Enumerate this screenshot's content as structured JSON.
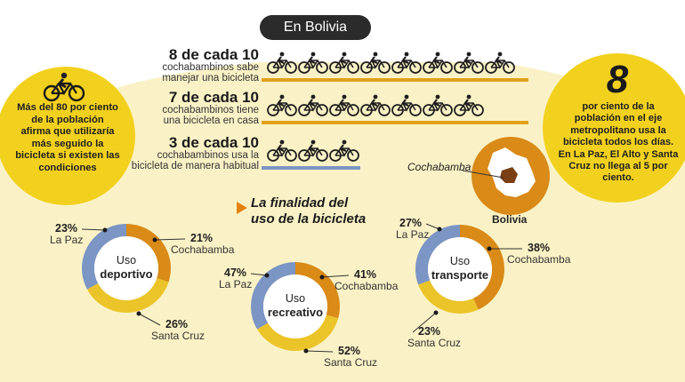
{
  "header": {
    "badge": "En Bolivia"
  },
  "stats": [
    {
      "big": "8 de cada 10",
      "line1": "cochabambinos sabe",
      "line2": "manejar una bicicleta",
      "count": 8
    },
    {
      "big": "7 de cada 10",
      "line1": "cochabambinos tiene",
      "line2": "una bicicleta en casa",
      "count": 7
    },
    {
      "big": "3 de cada 10",
      "line1": "cochabambinos usa la",
      "line2": "bicicleta de manera habitual",
      "count": 3
    }
  ],
  "left_circle": {
    "text_lines": [
      "Más del 80 por ciento",
      "de la población",
      "afirma que utilizaría",
      "más seguido la",
      "bicicleta si existen las",
      "condiciones"
    ],
    "icon": "bicycle-rider-icon"
  },
  "right_circle": {
    "number": "8",
    "text_lines": [
      "por ciento de la",
      "población en el eje",
      "metropolitano usa la",
      "bicicleta todos los días.",
      "En La Paz, El Alto y Santa",
      "Cruz no llega al 5 por",
      "ciento."
    ]
  },
  "map": {
    "region_label": "Cochabamba",
    "country_label": "Bolivia",
    "icon": "bolivia-map-icon"
  },
  "section_title": {
    "line1": "La finalidad del",
    "line2": "uso de la bicicleta"
  },
  "colors": {
    "la_paz": "#7b95c4",
    "cochabamba": "#d98a17",
    "santa_cruz": "#ebc42a",
    "bar_orange": "#e0a11b",
    "bar_blue": "#7b95c4",
    "wash": "#faf2c6",
    "circle": "#f2d11e"
  },
  "chart_data": [
    {
      "type": "pie",
      "title_line1": "Uso",
      "title_line2": "deportivo",
      "categories": [
        "La Paz",
        "Cochabamba",
        "Santa Cruz"
      ],
      "values": [
        23,
        21,
        26
      ],
      "labels": [
        "23%",
        "21%",
        "26%"
      ]
    },
    {
      "type": "pie",
      "title_line1": "Uso",
      "title_line2": "recreativo",
      "categories": [
        "La Paz",
        "Cochabamba",
        "Santa Cruz"
      ],
      "values": [
        47,
        41,
        52
      ],
      "labels": [
        "47%",
        "41%",
        "52%"
      ]
    },
    {
      "type": "pie",
      "title_line1": "Uso",
      "title_line2": "transporte",
      "categories": [
        "La Paz",
        "Cochabamba",
        "Santa Cruz"
      ],
      "values": [
        27,
        38,
        23
      ],
      "labels": [
        "27%",
        "38%",
        "23%"
      ]
    }
  ]
}
